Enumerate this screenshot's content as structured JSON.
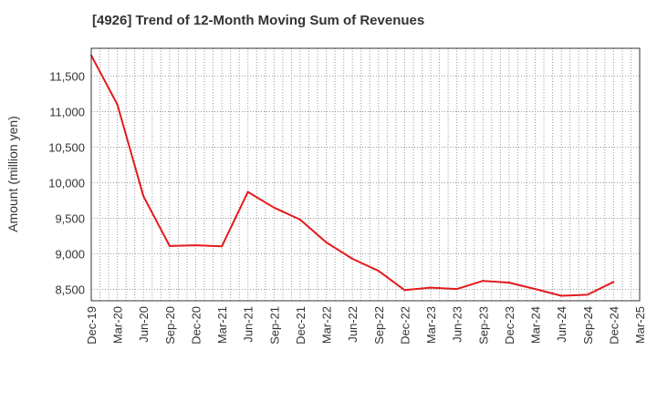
{
  "chart_data": {
    "type": "line",
    "title": "[4926]  Trend of 12-Month Moving Sum of Revenues",
    "xlabel": "",
    "ylabel": "Amount (million yen)",
    "x_ticks": [
      "Dec-19",
      "Mar-20",
      "Jun-20",
      "Sep-20",
      "Dec-20",
      "Mar-21",
      "Jun-21",
      "Sep-21",
      "Dec-21",
      "Mar-22",
      "Jun-22",
      "Sep-22",
      "Dec-22",
      "Mar-23",
      "Jun-23",
      "Sep-23",
      "Dec-23",
      "Mar-24",
      "Jun-24",
      "Sep-24",
      "Dec-24",
      "Mar-25"
    ],
    "y_ticks": [
      8500,
      9000,
      9500,
      10000,
      10500,
      11000,
      11500
    ],
    "y_tick_labels": [
      "8,500",
      "9,000",
      "9,500",
      "10,000",
      "10,500",
      "11,000",
      "11,500"
    ],
    "ylim": [
      8340,
      11890
    ],
    "grid": true,
    "line_color": "#e31a1c",
    "series": [
      {
        "x": [
          "Dec-19",
          "Mar-20",
          "Jun-20",
          "Sep-20",
          "Dec-20",
          "Mar-21",
          "Jun-21",
          "Sep-21",
          "Dec-21",
          "Mar-22",
          "Jun-22",
          "Sep-22",
          "Dec-22",
          "Mar-23",
          "Jun-23",
          "Sep-23",
          "Dec-23",
          "Mar-24",
          "Jun-24",
          "Sep-24",
          "Dec-24"
        ],
        "values": [
          11790,
          11100,
          9810,
          9110,
          9120,
          9105,
          9870,
          9650,
          9480,
          9160,
          8930,
          8760,
          8490,
          8525,
          8505,
          8620,
          8595,
          8505,
          8410,
          8425,
          8605
        ]
      }
    ]
  }
}
